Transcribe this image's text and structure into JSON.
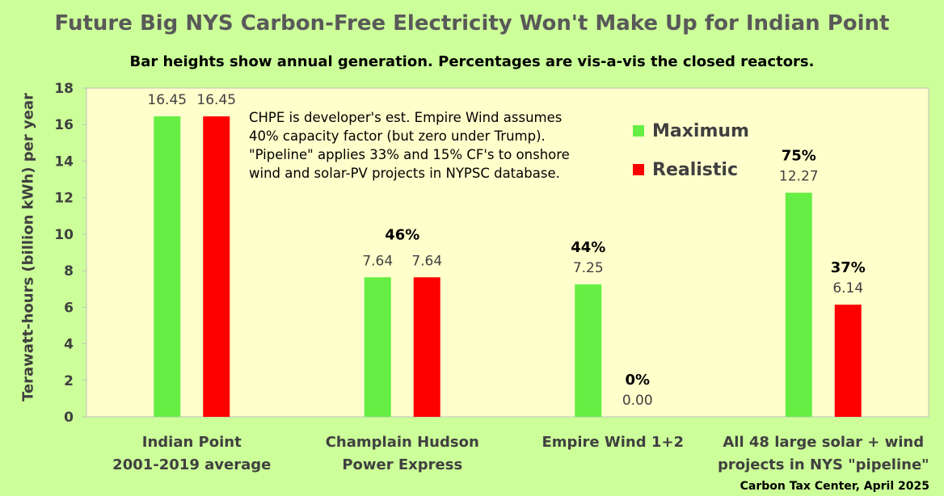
{
  "chart_data": {
    "type": "bar",
    "title": "Future Big NYS Carbon-Free Electricity Won't Make Up for Indian Point",
    "subtitle": "Bar heights show annual generation. Percentages are vis-a-vis the closed reactors.",
    "ylabel": "Terawatt-hours (billion kWh) per year",
    "xlabel": "",
    "ylim": [
      0,
      18
    ],
    "yticks": [
      0,
      2,
      4,
      6,
      8,
      10,
      12,
      14,
      16,
      18
    ],
    "grid": false,
    "legend_position": "top-right",
    "categories": [
      [
        "Indian Point",
        "2001-2019 average"
      ],
      [
        "Champlain Hudson",
        "Power Express"
      ],
      [
        "Empire Wind 1+2"
      ],
      [
        "All 48 large solar + wind",
        "projects in NYS \"pipeline\""
      ]
    ],
    "series": [
      {
        "name": "Maximum",
        "color": "#66ee44",
        "values": [
          16.45,
          7.64,
          7.25,
          12.27
        ],
        "value_labels": [
          "16.45",
          "7.64",
          "7.25",
          "12.27"
        ],
        "percent_labels": [
          "",
          "",
          "44%",
          "75%"
        ]
      },
      {
        "name": "Realistic",
        "color": "#ff0000",
        "values": [
          16.45,
          7.64,
          0.0,
          6.14
        ],
        "value_labels": [
          "16.45",
          "7.64",
          "0.00",
          "6.14"
        ],
        "percent_labels": [
          "",
          "",
          "0%",
          "37%"
        ]
      }
    ],
    "group_percent_labels": [
      "",
      "46%",
      "",
      ""
    ],
    "annotation": [
      "CHPE is developer's est. Empire Wind assumes",
      "40% capacity factor (but zero under Trump).",
      "\"Pipeline\" applies 33% and 15% CF's to onshore",
      "wind and solar-PV projects in NYPSC database."
    ],
    "plot_background": "#ffffcc"
  },
  "credit": "Carbon Tax Center, April 2025"
}
